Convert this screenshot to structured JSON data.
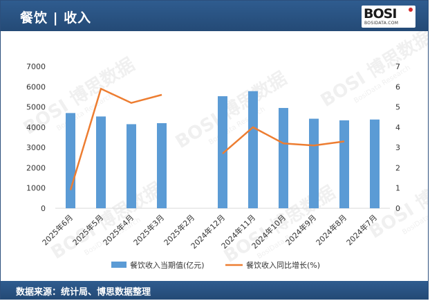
{
  "header": {
    "title": "餐饮 | 收入"
  },
  "logo": {
    "mark": "BOSI",
    "sub": "BOSIDATA.COM"
  },
  "watermark": {
    "text": "BOSI 博思数据",
    "sub": "BosiData Research"
  },
  "footer": {
    "source": "数据来源：统计局、博思数据整理"
  },
  "colors": {
    "header_bg": "#2c5587",
    "bar": "#5b9bd5",
    "line": "#ed7d31"
  },
  "chart_data": {
    "type": "bar",
    "categories": [
      "2025年6月",
      "2025年5月",
      "2025年4月",
      "2025年3月",
      "2025年2月",
      "2024年12月",
      "2024年11月",
      "2024年10月",
      "2024年9月",
      "2024年8月",
      "2024年7月"
    ],
    "series": [
      {
        "name": "餐饮收入当期值(亿元)",
        "type": "bar",
        "axis": "left",
        "values": [
          4700,
          4530,
          4150,
          4200,
          null,
          5530,
          5780,
          4950,
          4420,
          4340,
          4380
        ]
      },
      {
        "name": "餐饮收入同比增长(%)",
        "type": "line",
        "axis": "right",
        "values": [
          0.9,
          5.9,
          5.2,
          5.6,
          null,
          2.7,
          4.0,
          3.2,
          3.1,
          3.3,
          null
        ]
      }
    ],
    "ylim_left": [
      0,
      7000
    ],
    "yticks_left": [
      "0",
      "1000",
      "2000",
      "3000",
      "4000",
      "5000",
      "6000",
      "7000"
    ],
    "ylim_right": [
      0,
      7
    ],
    "yticks_right": [
      "0",
      "1",
      "2",
      "3",
      "4",
      "5",
      "6",
      "7"
    ],
    "grid": false,
    "legend": "bottom"
  }
}
